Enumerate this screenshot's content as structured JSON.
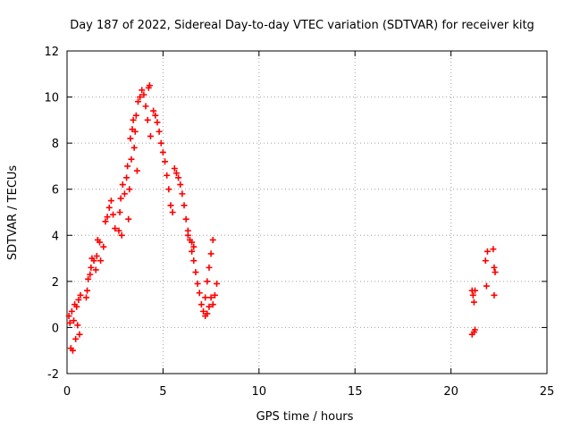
{
  "chart_data": {
    "type": "scatter",
    "title": "Day 187 of 2022, Sidereal Day-to-day VTEC variation (SDTVAR) for receiver kitg",
    "xlabel": "GPS time / hours",
    "ylabel": "SDTVAR / TECUs",
    "xlim": [
      0,
      25
    ],
    "ylim": [
      -2,
      12
    ],
    "xticks": [
      0,
      5,
      10,
      15,
      20,
      25
    ],
    "yticks": [
      -2,
      0,
      2,
      4,
      6,
      8,
      10,
      12
    ],
    "grid": true,
    "marker": "+",
    "color": "#ff0000",
    "series": [
      {
        "name": "SDTVAR",
        "points": [
          [
            0.1,
            0.5
          ],
          [
            0.15,
            0.2
          ],
          [
            0.2,
            -0.9
          ],
          [
            0.25,
            0.7
          ],
          [
            0.3,
            -1.0
          ],
          [
            0.35,
            0.3
          ],
          [
            0.4,
            1.0
          ],
          [
            0.45,
            -0.5
          ],
          [
            0.5,
            0.9
          ],
          [
            0.55,
            0.1
          ],
          [
            0.6,
            1.2
          ],
          [
            0.65,
            -0.3
          ],
          [
            0.7,
            1.4
          ],
          [
            1.0,
            1.3
          ],
          [
            1.05,
            1.6
          ],
          [
            1.1,
            2.1
          ],
          [
            1.2,
            2.3
          ],
          [
            1.25,
            2.6
          ],
          [
            1.3,
            3.0
          ],
          [
            1.4,
            2.9
          ],
          [
            1.5,
            2.5
          ],
          [
            1.55,
            3.1
          ],
          [
            1.6,
            3.8
          ],
          [
            1.7,
            3.7
          ],
          [
            1.75,
            2.9
          ],
          [
            1.9,
            3.5
          ],
          [
            2.0,
            4.6
          ],
          [
            2.1,
            4.8
          ],
          [
            2.2,
            5.2
          ],
          [
            2.3,
            5.5
          ],
          [
            2.4,
            4.9
          ],
          [
            2.5,
            4.3
          ],
          [
            2.7,
            4.2
          ],
          [
            2.75,
            5.0
          ],
          [
            2.8,
            5.6
          ],
          [
            2.85,
            4.0
          ],
          [
            2.9,
            6.2
          ],
          [
            3.0,
            5.8
          ],
          [
            3.1,
            6.5
          ],
          [
            3.15,
            7.0
          ],
          [
            3.2,
            4.7
          ],
          [
            3.25,
            6.0
          ],
          [
            3.3,
            8.2
          ],
          [
            3.35,
            7.3
          ],
          [
            3.4,
            8.6
          ],
          [
            3.45,
            9.0
          ],
          [
            3.5,
            7.8
          ],
          [
            3.55,
            8.5
          ],
          [
            3.6,
            9.2
          ],
          [
            3.65,
            6.8
          ],
          [
            3.7,
            9.8
          ],
          [
            3.8,
            10.0
          ],
          [
            3.9,
            10.3
          ],
          [
            4.0,
            10.1
          ],
          [
            4.1,
            9.6
          ],
          [
            4.2,
            9.0
          ],
          [
            4.25,
            10.4
          ],
          [
            4.3,
            10.5
          ],
          [
            4.35,
            8.3
          ],
          [
            4.5,
            9.4
          ],
          [
            4.6,
            9.2
          ],
          [
            4.7,
            8.9
          ],
          [
            4.8,
            8.5
          ],
          [
            4.9,
            8.0
          ],
          [
            5.0,
            7.6
          ],
          [
            5.1,
            7.2
          ],
          [
            5.2,
            6.6
          ],
          [
            5.3,
            6.0
          ],
          [
            5.4,
            5.3
          ],
          [
            5.5,
            5.0
          ],
          [
            5.6,
            6.9
          ],
          [
            5.7,
            6.7
          ],
          [
            5.8,
            6.5
          ],
          [
            5.9,
            6.2
          ],
          [
            6.0,
            5.8
          ],
          [
            6.1,
            5.3
          ],
          [
            6.2,
            4.7
          ],
          [
            6.3,
            4.2
          ],
          [
            6.4,
            3.8
          ],
          [
            6.5,
            3.3
          ],
          [
            6.6,
            2.9
          ],
          [
            6.7,
            2.4
          ],
          [
            6.8,
            1.9
          ],
          [
            6.9,
            1.5
          ],
          [
            7.0,
            1.0
          ],
          [
            7.1,
            0.7
          ],
          [
            7.2,
            0.5
          ],
          [
            7.3,
            0.6
          ],
          [
            7.4,
            0.9
          ],
          [
            7.5,
            1.3
          ],
          [
            7.6,
            1.0
          ],
          [
            7.7,
            1.4
          ],
          [
            7.8,
            1.9
          ],
          [
            7.2,
            1.3
          ],
          [
            7.3,
            2.0
          ],
          [
            7.4,
            2.6
          ],
          [
            7.5,
            3.2
          ],
          [
            7.6,
            3.8
          ],
          [
            6.5,
            3.7
          ],
          [
            6.6,
            3.5
          ],
          [
            6.3,
            4.0
          ],
          [
            21.1,
            1.6
          ],
          [
            21.15,
            1.4
          ],
          [
            21.2,
            1.1
          ],
          [
            21.25,
            1.6
          ],
          [
            21.2,
            -0.2
          ],
          [
            21.25,
            -0.1
          ],
          [
            21.1,
            -0.3
          ],
          [
            21.8,
            2.9
          ],
          [
            21.9,
            3.3
          ],
          [
            21.85,
            1.8
          ],
          [
            22.2,
            3.4
          ],
          [
            22.25,
            2.6
          ],
          [
            22.3,
            2.4
          ],
          [
            22.25,
            1.4
          ]
        ]
      }
    ]
  }
}
